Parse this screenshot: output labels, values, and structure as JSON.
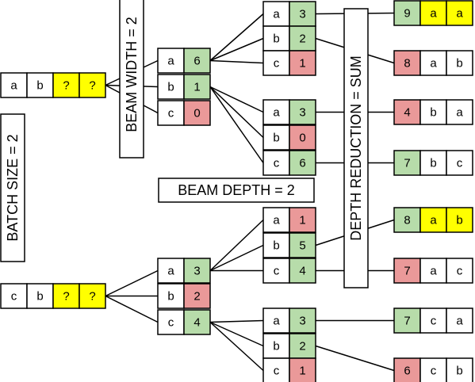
{
  "colors": {
    "yellow": "#ffff00",
    "green": "#b7dcaa",
    "red": "#ea9999",
    "white": "#ffffff",
    "line": "#000000"
  },
  "labels": {
    "batch_size": "BATCH SIZE = 2",
    "beam_width": "BEAM WIDTH = 2",
    "beam_depth": "BEAM DEPTH = 2",
    "depth_reduction": "DEPTH REDUCTION = SUM"
  },
  "inputs": [
    [
      "a",
      "b",
      "?",
      "?"
    ],
    [
      "c",
      "b",
      "?",
      "?"
    ]
  ],
  "level1": [
    [
      [
        "a",
        "6"
      ],
      [
        "b",
        "1"
      ],
      [
        "c",
        "0"
      ]
    ],
    [
      [
        "a",
        "3"
      ],
      [
        "b",
        "2"
      ],
      [
        "c",
        "4"
      ]
    ]
  ],
  "level2": [
    [
      [
        "a",
        "3"
      ],
      [
        "b",
        "2"
      ],
      [
        "c",
        "1"
      ]
    ],
    [
      [
        "a",
        "3"
      ],
      [
        "b",
        "0"
      ],
      [
        "c",
        "6"
      ]
    ],
    [
      [
        "a",
        "1"
      ],
      [
        "b",
        "5"
      ],
      [
        "c",
        "4"
      ]
    ],
    [
      [
        "a",
        "3"
      ],
      [
        "b",
        "2"
      ],
      [
        "c",
        "1"
      ]
    ]
  ],
  "results": [
    [
      "9",
      "a",
      "a"
    ],
    [
      "8",
      "a",
      "b"
    ],
    [
      "4",
      "b",
      "a"
    ],
    [
      "7",
      "b",
      "c"
    ],
    [
      "8",
      "a",
      "b"
    ],
    [
      "7",
      "a",
      "c"
    ],
    [
      "7",
      "c",
      "a"
    ],
    [
      "6",
      "c",
      "b"
    ]
  ]
}
